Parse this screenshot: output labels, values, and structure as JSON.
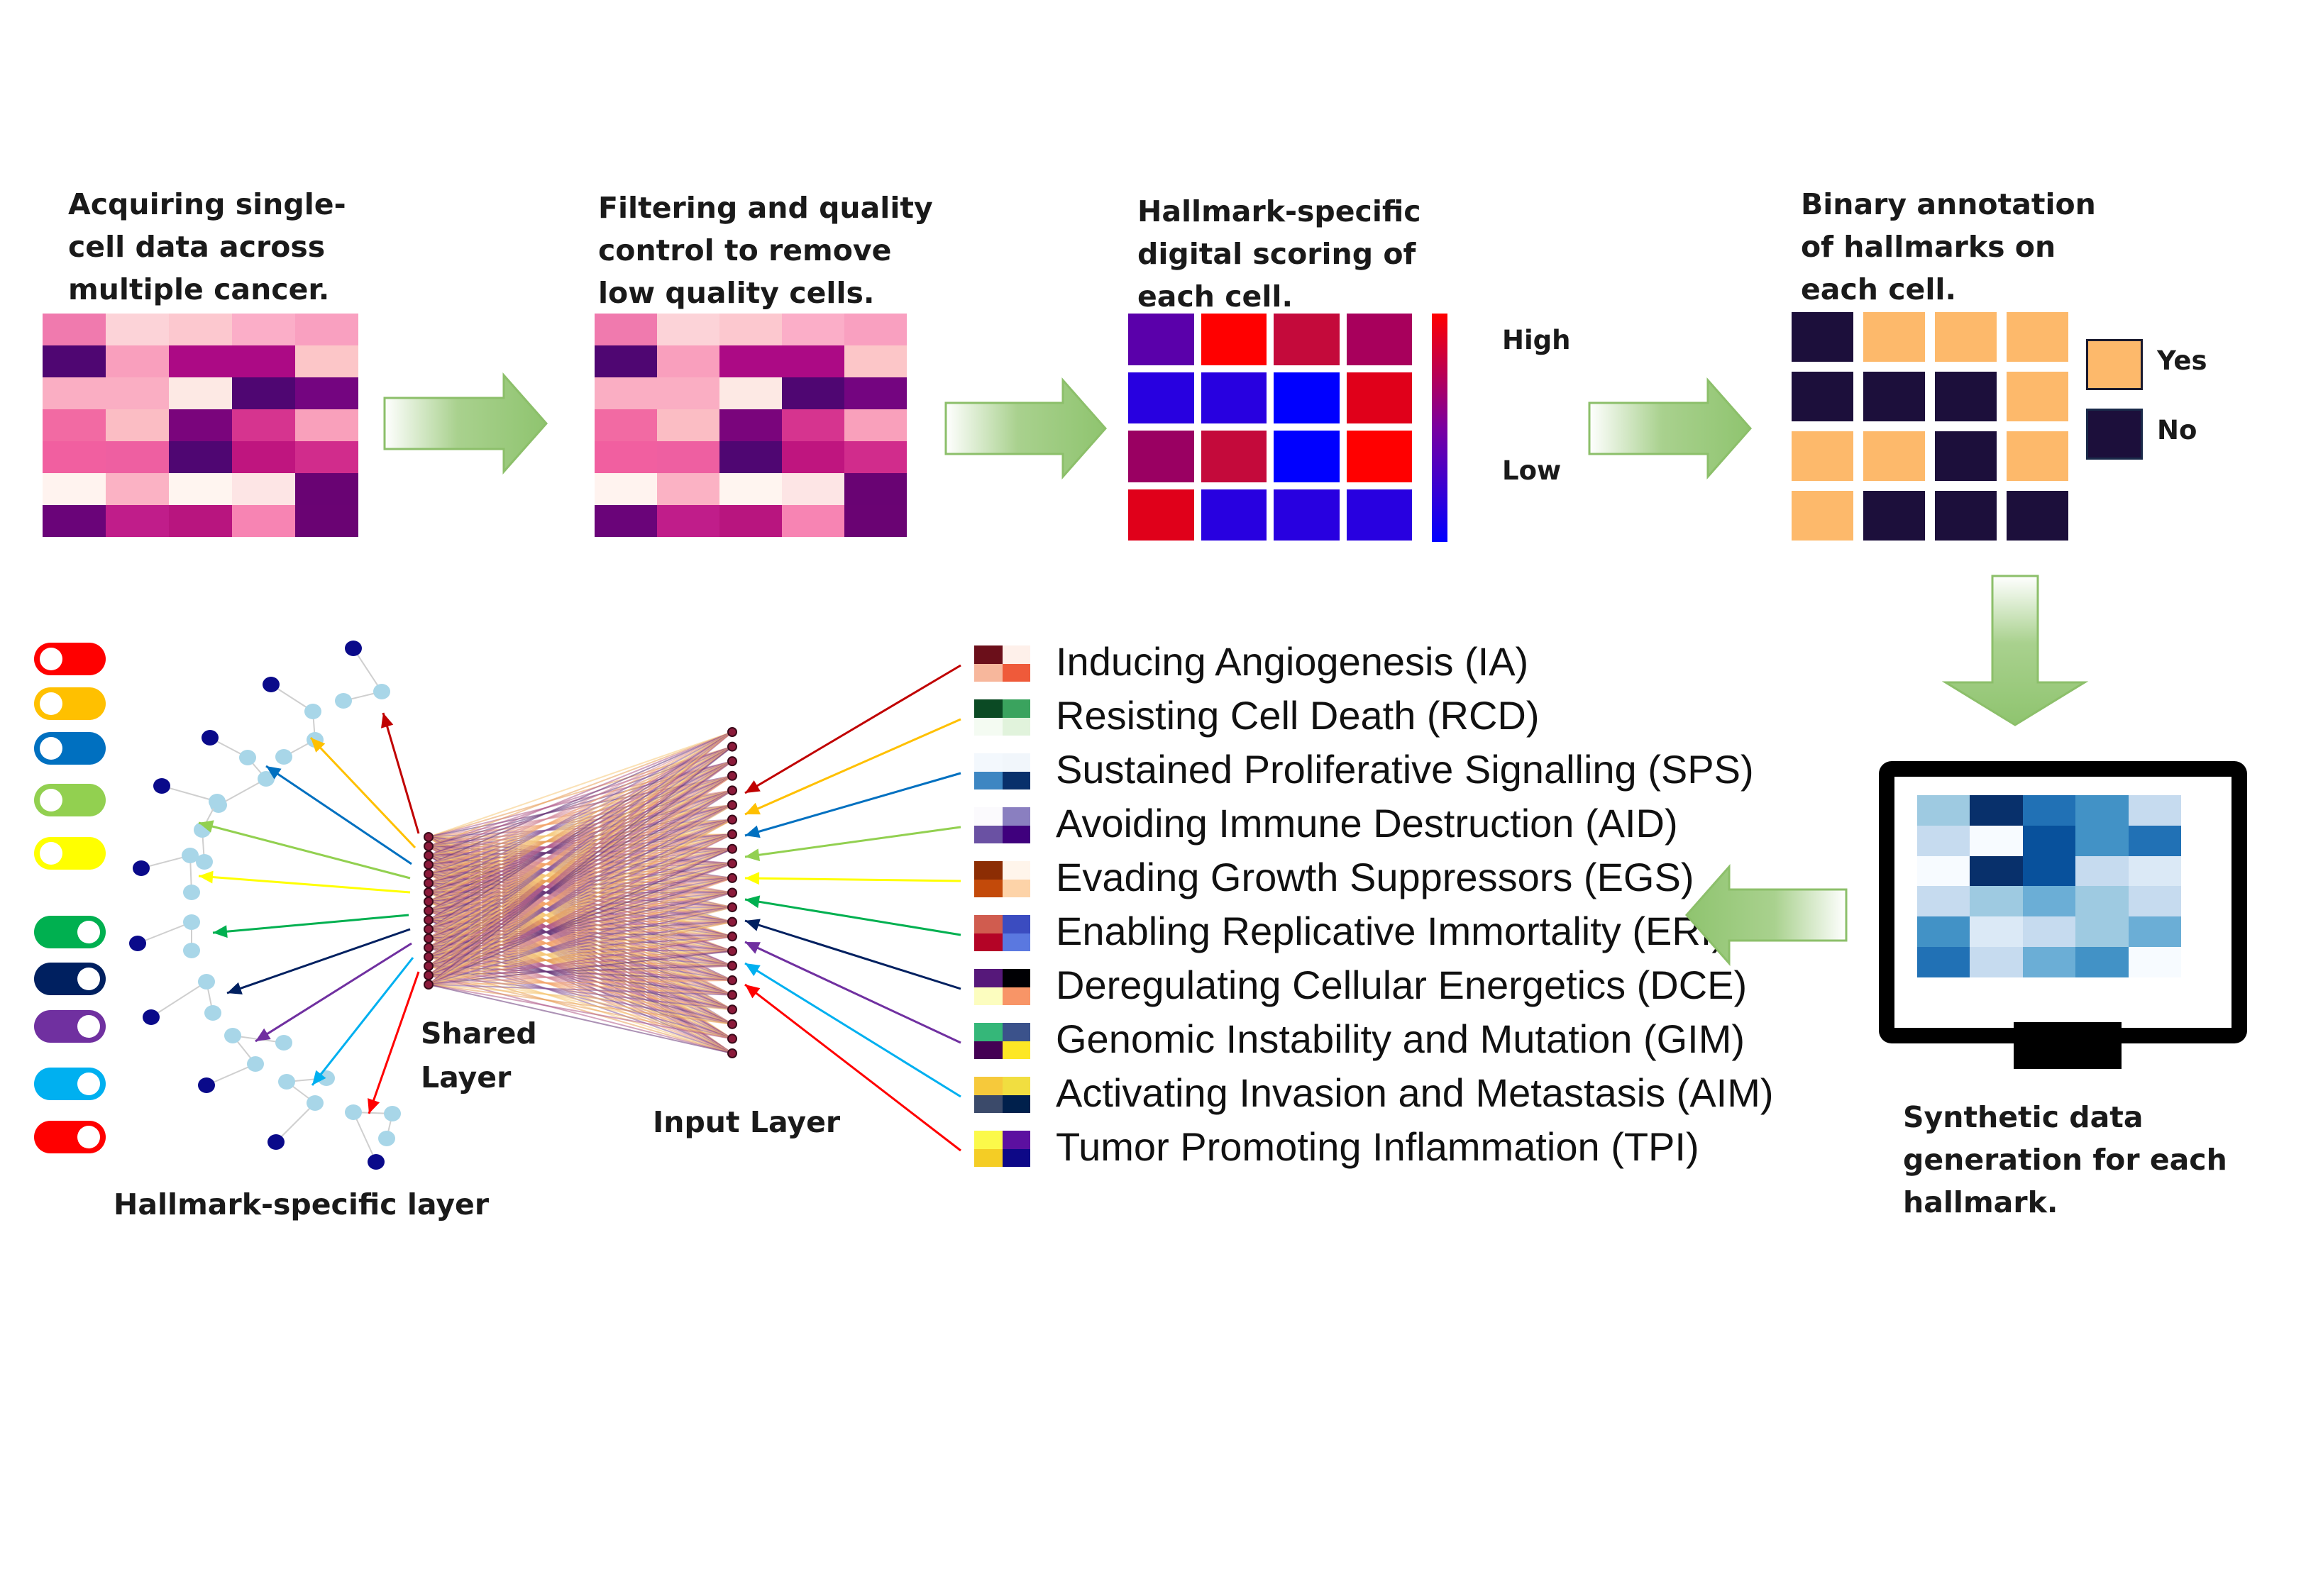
{
  "captions": {
    "step1": [
      "Acquiring single-",
      "cell data across",
      "multiple cancer."
    ],
    "step2": [
      "Filtering and quality",
      "control to remove",
      "low quality cells."
    ],
    "step3": [
      "Hallmark-specific",
      "digital scoring of",
      "each cell."
    ],
    "step4": [
      "Binary annotation",
      "of hallmarks on",
      "each cell."
    ],
    "step5": [
      "Synthetic data",
      "generation for each",
      "hallmark."
    ]
  },
  "scale_labels": {
    "high": "High",
    "low": "Low"
  },
  "binary_legend": {
    "yes": "Yes",
    "no": "No"
  },
  "network_labels": {
    "shared_layer": [
      "Shared",
      "Layer"
    ],
    "input_layer": "Input Layer",
    "hallmark_layer": "Hallmark-specific layer"
  },
  "hallmarks": [
    {
      "label": "Inducing Angiogenesis (IA)",
      "color": "#c00000"
    },
    {
      "label": "Resisting Cell Death (RCD)",
      "color": "#ffc000"
    },
    {
      "label": "Sustained Proliferative Signalling (SPS)",
      "color": "#0070c0"
    },
    {
      "label": "Avoiding Immune Destruction (AID)",
      "color": "#92d050"
    },
    {
      "label": "Evading Growth Suppressors (EGS)",
      "color": "#ffff00"
    },
    {
      "label": "Enabling Replicative Immortality (ERI)",
      "color": "#00b050"
    },
    {
      "label": "Deregulating Cellular Energetics (DCE)",
      "color": "#002060"
    },
    {
      "label": "Genomic Instability and Mutation (GIM)",
      "color": "#7030a0"
    },
    {
      "label": "Activating Invasion and Metastasis (AIM)",
      "color": "#00b0f0"
    },
    {
      "label": "Tumor Promoting Inflammation (TPI)",
      "color": "#ff0000"
    }
  ],
  "hallmark_icons": [
    [
      "#6b0f1a",
      "#fef0ea",
      "#f7b79c",
      "#ef5a3a"
    ],
    [
      "#0b4a24",
      "#3aa35e",
      "#f4fbf2",
      "#e1f3dc"
    ],
    [
      "#f3f8fd",
      "#f1f6fb",
      "#3d86c2",
      "#08306b"
    ],
    [
      "#fbfafd",
      "#8a7fc0",
      "#6a51a3",
      "#3f007d"
    ],
    [
      "#8c2d04",
      "#fff5eb",
      "#c34a0a",
      "#fdd3a8"
    ],
    [
      "#d05c4f",
      "#3b4cc0",
      "#b40426",
      "#5a78e0"
    ],
    [
      "#56187a",
      "#000004",
      "#fcfdbf",
      "#f89567"
    ],
    [
      "#35b779",
      "#3b528b",
      "#440154",
      "#fde725"
    ],
    [
      "#f6c93b",
      "#f1de40",
      "#3b4a6a",
      "#00204c"
    ],
    [
      "#fbf94a",
      "#5c10a0",
      "#f4cd25",
      "#0d0887"
    ]
  ],
  "toggle_colors": [
    "#ff0000",
    "#ffc000",
    "#0070c0",
    "#92d050",
    "#ffff00",
    "#00b050",
    "#002060",
    "#7030a0",
    "#00b0f0",
    "#ff0000"
  ],
  "heatmap_raw": [
    [
      "#f07aae",
      "#fcd3d8",
      "#fcc8cf",
      "#fbaec8",
      "#f9a0c0"
    ],
    [
      "#4f0672",
      "#f99fbd",
      "#ac0a85",
      "#ac0a85",
      "#fcc6c8"
    ],
    [
      "#faaec3",
      "#faaec3",
      "#fde9e4",
      "#4f0672",
      "#740580"
    ],
    [
      "#f26aa3",
      "#fbbdc4",
      "#7a057c",
      "#d6348f",
      "#f9a0bb"
    ],
    [
      "#f15fa0",
      "#ee5fa1",
      "#4f0672",
      "#bf157f",
      "#d12c8c"
    ],
    [
      "#fff3ef",
      "#fbb2c4",
      "#fff5f0",
      "#fde5e5",
      "#690373"
    ],
    [
      "#6a0479",
      "#c01d8a",
      "#b8157f",
      "#f784b3",
      "#6a0373"
    ]
  ],
  "score_grid": [
    [
      "#5a00aa",
      "#ff0000",
      "#c40a3b",
      "#a8005c"
    ],
    [
      "#2800e0",
      "#2800e0",
      "#0000ff",
      "#e0001a"
    ],
    [
      "#9a0062",
      "#c40a3b",
      "#0000ff",
      "#ff0000"
    ],
    [
      "#e0001a",
      "#2800e0",
      "#2800e0",
      "#2800e0"
    ]
  ],
  "binary_grid": [
    [
      0,
      1,
      1,
      1
    ],
    [
      0,
      0,
      0,
      1
    ],
    [
      1,
      1,
      0,
      1
    ],
    [
      1,
      0,
      0,
      0
    ]
  ],
  "synthetic_grid": [
    [
      "#9ecae1",
      "#08306b",
      "#2171b5",
      "#4292c6",
      "#c6dbef"
    ],
    [
      "#c6dbef",
      "#f7fbff",
      "#08519c",
      "#4292c6",
      "#2171b5"
    ],
    [
      "#f7fbff",
      "#08306b",
      "#08519c",
      "#c6dbef",
      "#dbe9f6"
    ],
    [
      "#c6dbef",
      "#9ecae1",
      "#6baed6",
      "#9ecae1",
      "#c6dbef"
    ],
    [
      "#4292c6",
      "#dbe9f6",
      "#c6dbef",
      "#9ecae1",
      "#6baed6"
    ],
    [
      "#2171b5",
      "#c6dbef",
      "#6baed6",
      "#4292c6",
      "#f7fbff"
    ]
  ]
}
